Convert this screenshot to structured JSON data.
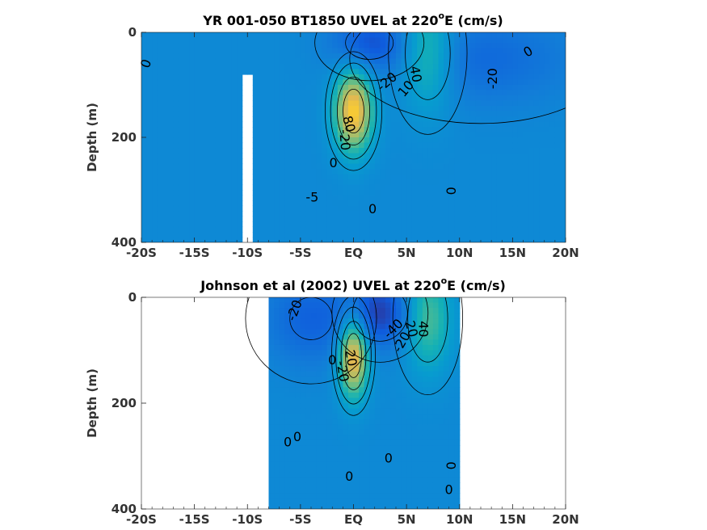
{
  "chart_data": [
    {
      "type": "heatmap",
      "title_main": "YR 001-050 BT1850 UVEL at 220",
      "title_sup": "o",
      "title_end": "E (cm/s)",
      "xlabel": "",
      "ylabel": "Depth (m)",
      "xlim": [
        -20,
        20
      ],
      "ylim": [
        400,
        0
      ],
      "y_reversed": true,
      "xticks": [
        -20,
        -15,
        -10,
        -5,
        0,
        5,
        10,
        15,
        20
      ],
      "xtick_labels": [
        "-20S",
        "-15S",
        "-10S",
        "-5S",
        "EQ",
        "5N",
        "10N",
        "15N",
        "20N"
      ],
      "yticks": [
        0,
        200,
        400
      ],
      "ytick_labels": [
        "0",
        "200",
        "400"
      ],
      "colormap": "parula",
      "features": [
        {
          "kind": "core",
          "x": 0,
          "depth": 150,
          "value": 80,
          "sx": 1.3,
          "sd": 55
        },
        {
          "kind": "core",
          "x": 7,
          "depth": 40,
          "value": 40,
          "sx": 1.8,
          "sd": 75
        },
        {
          "kind": "core",
          "x": 1.5,
          "depth": 20,
          "value": -30,
          "sx": 2.5,
          "sd": 35
        },
        {
          "kind": "core",
          "x": 12,
          "depth": 50,
          "value": -20,
          "sx": 6,
          "sd": 60
        },
        {
          "kind": "missing",
          "x_range": [
            -10.4,
            -9.6
          ],
          "depth_range": [
            80,
            400
          ]
        }
      ],
      "contour_labels": [
        {
          "text": "0",
          "x": -19.5,
          "depth": 60,
          "rot": -70
        },
        {
          "text": "-20",
          "x": 3.2,
          "depth": 95,
          "rot": -40
        },
        {
          "text": "10",
          "x": 5,
          "depth": 108,
          "rot": -50
        },
        {
          "text": "40",
          "x": 5.8,
          "depth": 80,
          "rot": 80
        },
        {
          "text": "-20",
          "x": 13.2,
          "depth": 88,
          "rot": -90
        },
        {
          "text": "0",
          "x": 16.5,
          "depth": 38,
          "rot": -30
        },
        {
          "text": "80",
          "x": -0.5,
          "depth": 175,
          "rot": 75
        },
        {
          "text": "-20",
          "x": -0.9,
          "depth": 205,
          "rot": 85
        },
        {
          "text": "0",
          "x": -1.9,
          "depth": 250,
          "rot": 0
        },
        {
          "text": "-5",
          "x": -3.9,
          "depth": 315,
          "rot": 0
        },
        {
          "text": "0",
          "x": 1.8,
          "depth": 338,
          "rot": 0
        },
        {
          "text": "0",
          "x": 9.3,
          "depth": 302,
          "rot": -90
        }
      ]
    },
    {
      "type": "heatmap",
      "title_main": "Johnson et al (2002) UVEL at 220",
      "title_sup": "o",
      "title_end": "E (cm/s)",
      "xlabel": "",
      "ylabel": "Depth (m)",
      "xlim": [
        -20,
        20
      ],
      "ylim": [
        400,
        0
      ],
      "y_reversed": true,
      "xticks": [
        -20,
        -15,
        -10,
        -5,
        0,
        5,
        10,
        15,
        20
      ],
      "xtick_labels": [
        "-20S",
        "-15S",
        "-10S",
        "-5S",
        "EQ",
        "5N",
        "10N",
        "15N",
        "20N"
      ],
      "yticks": [
        0,
        200,
        400
      ],
      "ytick_labels": [
        "0",
        "200",
        "400"
      ],
      "colormap": "parula",
      "data_extent": {
        "x_range": [
          -8,
          10
        ]
      },
      "features": [
        {
          "kind": "core",
          "x": 0,
          "depth": 110,
          "value": 80,
          "sx": 1.0,
          "sd": 55
        },
        {
          "kind": "core",
          "x": 7,
          "depth": 40,
          "value": 40,
          "sx": 1.6,
          "sd": 70
        },
        {
          "kind": "core",
          "x": 2.5,
          "depth": 30,
          "value": -40,
          "sx": 2.2,
          "sd": 45
        },
        {
          "kind": "core",
          "x": -4,
          "depth": 40,
          "value": -25,
          "sx": 3,
          "sd": 60
        }
      ],
      "contour_labels": [
        {
          "text": "-20",
          "x": -5.5,
          "depth": 25,
          "rot": -70
        },
        {
          "text": "-40",
          "x": 3.8,
          "depth": 60,
          "rot": -45
        },
        {
          "text": "-20",
          "x": 4.6,
          "depth": 85,
          "rot": -60
        },
        {
          "text": "20",
          "x": 5.4,
          "depth": 60,
          "rot": 75
        },
        {
          "text": "40",
          "x": 6.5,
          "depth": 60,
          "rot": 90
        },
        {
          "text": "20",
          "x": -0.3,
          "depth": 115,
          "rot": 80
        },
        {
          "text": "0",
          "x": -2.0,
          "depth": 120,
          "rot": 0
        },
        {
          "text": "-20",
          "x": -1.1,
          "depth": 140,
          "rot": 80
        },
        {
          "text": "0",
          "x": -6.2,
          "depth": 275,
          "rot": 0
        },
        {
          "text": "0",
          "x": -5.3,
          "depth": 265,
          "rot": 0
        },
        {
          "text": "0",
          "x": -0.4,
          "depth": 340,
          "rot": 0
        },
        {
          "text": "0",
          "x": 3.3,
          "depth": 305,
          "rot": 0
        },
        {
          "text": "0",
          "x": 9.3,
          "depth": 318,
          "rot": -90
        },
        {
          "text": "0",
          "x": 9.0,
          "depth": 365,
          "rot": 0
        }
      ]
    }
  ]
}
